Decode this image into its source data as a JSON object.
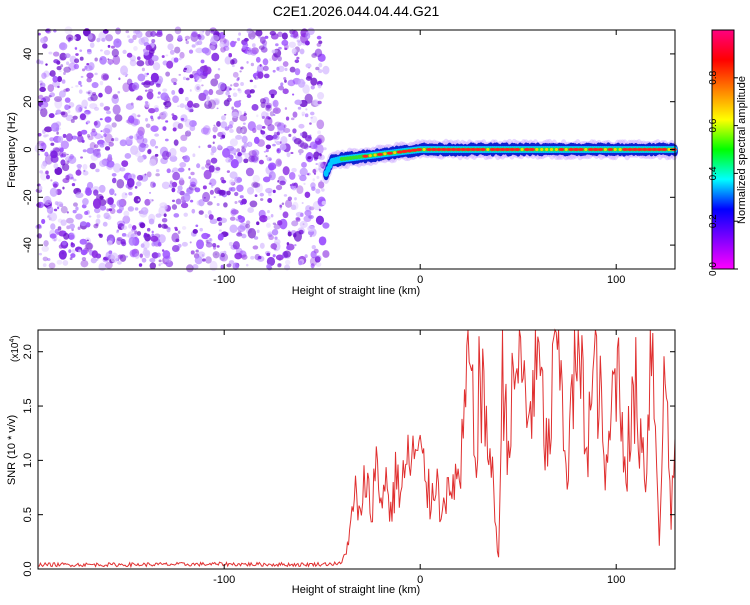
{
  "title": "C2E1.2026.044.04.44.G21",
  "chart_data": [
    {
      "type": "heatmap",
      "xlabel": "Height of straight line (km)",
      "ylabel": "Frequency (Hz)",
      "xlim": [
        -195,
        130
      ],
      "ylim": [
        -50,
        50
      ],
      "x_ticks": [
        -100,
        0,
        100
      ],
      "y_ticks": [
        -40,
        -20,
        0,
        20,
        40
      ],
      "signal_track": {
        "start_x": -48,
        "points": [
          {
            "x": -48,
            "y": -10
          },
          {
            "x": -45,
            "y": -5
          },
          {
            "x": -40,
            "y": -4
          },
          {
            "x": -30,
            "y": -3
          },
          {
            "x": -20,
            "y": -2
          },
          {
            "x": -10,
            "y": -1
          },
          {
            "x": 0,
            "y": 0
          },
          {
            "x": 50,
            "y": 0
          },
          {
            "x": 100,
            "y": 0
          },
          {
            "x": 130,
            "y": 0
          }
        ]
      },
      "colorbar": {
        "label": "Normalized spectral amplitude",
        "range": [
          0.0,
          1.0
        ],
        "ticks": [
          "0.0",
          "0.2",
          "0.4",
          "0.6",
          "0.8"
        ],
        "colors": [
          "#ff00ff",
          "#8000ff",
          "#0000ff",
          "#00ffff",
          "#00ff00",
          "#ffff00",
          "#ff8000",
          "#ff0000",
          "#ff0080"
        ]
      },
      "noise_color": "#8a2be2"
    },
    {
      "type": "line",
      "xlabel": "Height of straight line (km)",
      "ylabel": "SNR (10 * v/v)",
      "y_multiplier": "(x10",
      "y_multiplier_exp": "4",
      "y_multiplier_close": ")",
      "xlim": [
        -195,
        130
      ],
      "ylim": [
        0,
        22000
      ],
      "x_ticks": [
        -100,
        0,
        100
      ],
      "y_ticks": [
        "0.0",
        "0.5",
        "1.0",
        "1.5",
        "2.0"
      ],
      "line_color": "#e03030",
      "series": [
        {
          "x": [
            -195,
            -150,
            -100,
            -60,
            -40,
            -36,
            -33,
            -30,
            -28,
            -25,
            -23,
            -20,
            -18,
            -15,
            -12,
            -10,
            -8,
            -5,
            -3,
            0,
            3,
            5,
            8,
            10,
            12,
            15,
            18,
            20,
            22,
            25,
            28,
            30,
            35,
            40,
            42,
            45,
            50,
            55,
            60,
            65,
            70,
            75,
            80,
            85,
            90,
            95,
            100,
            105,
            110,
            115,
            118,
            120,
            122,
            125,
            128,
            130
          ],
          "y": [
            400,
            400,
            450,
            400,
            500,
            3000,
            7000,
            4000,
            9000,
            5000,
            10000,
            6000,
            9000,
            5000,
            9000,
            7000,
            9000,
            10000,
            10500,
            10000,
            8500,
            6000,
            9500,
            5000,
            8000,
            6000,
            9000,
            7000,
            12000,
            20000,
            10000,
            17000,
            12000,
            1000,
            18000,
            12000,
            20000,
            14000,
            19000,
            10000,
            22000,
            9000,
            21000,
            12000,
            19000,
            8000,
            20000,
            10000,
            16000,
            9000,
            22000,
            14000,
            3000,
            19000,
            5000,
            12000
          ]
        }
      ]
    }
  ]
}
